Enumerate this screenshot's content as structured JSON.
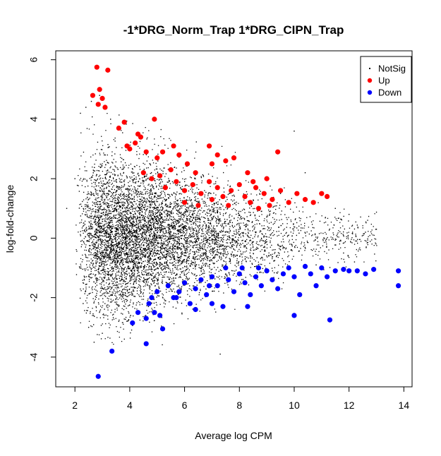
{
  "chart_data": {
    "type": "scatter",
    "title": "-1*DRG_Norm_Trap 1*DRG_CIPN_Trap",
    "xlabel": "Average log CPM",
    "ylabel": "log-fold-change",
    "xlim": [
      1.3,
      14.3
    ],
    "ylim": [
      -5,
      6.3
    ],
    "x_ticks": [
      2,
      4,
      6,
      8,
      10,
      12,
      14
    ],
    "y_ticks": [
      -4,
      -2,
      0,
      2,
      4,
      6
    ],
    "legend_position": "top-right",
    "grid": false,
    "series": [
      {
        "name": "NotSig",
        "color": "#000000",
        "marker": "small-dot",
        "note_values": "dense cloud of several thousand genes; representative sample listed",
        "points": [
          [
            1.7,
            1.0
          ],
          [
            2.0,
            2.0
          ],
          [
            2.2,
            4.2
          ],
          [
            2.4,
            4.4
          ],
          [
            2.6,
            4.6
          ],
          [
            2.9,
            4.8
          ],
          [
            3.3,
            4.0
          ],
          [
            2.3,
            -2.2
          ],
          [
            2.5,
            -3.0
          ],
          [
            2.7,
            -3.5
          ],
          [
            3.0,
            -3.2
          ],
          [
            3.6,
            -2.8
          ],
          [
            7.3,
            -3.9
          ],
          [
            10.0,
            3.6
          ],
          [
            10.4,
            2.2
          ],
          [
            11.5,
            1.0
          ],
          [
            12.0,
            0.8
          ],
          [
            12.6,
            0.2
          ],
          [
            13.0,
            0.3
          ],
          [
            11.8,
            -0.5
          ],
          [
            12.2,
            -0.8
          ],
          [
            10.8,
            -0.9
          ],
          [
            9.5,
            1.5
          ],
          [
            8.8,
            0.9
          ]
        ]
      },
      {
        "name": "Up",
        "color": "#ff0000",
        "marker": "filled-circle",
        "points": [
          [
            2.8,
            5.75
          ],
          [
            3.2,
            5.65
          ],
          [
            2.65,
            4.8
          ],
          [
            2.9,
            5.0
          ],
          [
            3.0,
            4.7
          ],
          [
            2.85,
            4.5
          ],
          [
            3.1,
            4.4
          ],
          [
            3.8,
            3.9
          ],
          [
            3.6,
            3.7
          ],
          [
            4.3,
            3.5
          ],
          [
            4.4,
            3.4
          ],
          [
            4.9,
            4.0
          ],
          [
            3.9,
            3.1
          ],
          [
            4.0,
            3.0
          ],
          [
            4.2,
            3.2
          ],
          [
            4.6,
            2.9
          ],
          [
            5.0,
            2.7
          ],
          [
            5.2,
            2.9
          ],
          [
            5.6,
            3.1
          ],
          [
            5.8,
            2.8
          ],
          [
            6.1,
            2.5
          ],
          [
            6.9,
            3.1
          ],
          [
            7.2,
            2.8
          ],
          [
            7.5,
            2.6
          ],
          [
            7.0,
            2.5
          ],
          [
            7.8,
            2.7
          ],
          [
            8.3,
            2.2
          ],
          [
            9.4,
            2.9
          ],
          [
            4.5,
            2.2
          ],
          [
            4.8,
            2.0
          ],
          [
            5.3,
            1.7
          ],
          [
            5.7,
            1.9
          ],
          [
            6.0,
            1.6
          ],
          [
            6.3,
            1.8
          ],
          [
            6.6,
            1.5
          ],
          [
            6.9,
            1.9
          ],
          [
            7.2,
            1.7
          ],
          [
            7.4,
            1.4
          ],
          [
            7.7,
            1.6
          ],
          [
            8.0,
            1.8
          ],
          [
            8.2,
            1.4
          ],
          [
            8.6,
            1.7
          ],
          [
            8.9,
            1.5
          ],
          [
            9.2,
            1.3
          ],
          [
            9.5,
            1.6
          ],
          [
            9.8,
            1.2
          ],
          [
            10.1,
            1.5
          ],
          [
            10.4,
            1.3
          ],
          [
            10.7,
            1.2
          ],
          [
            11.0,
            1.5
          ],
          [
            11.2,
            1.4
          ],
          [
            6.0,
            1.2
          ],
          [
            6.5,
            1.1
          ],
          [
            7.0,
            1.3
          ],
          [
            7.6,
            1.1
          ],
          [
            8.4,
            1.2
          ],
          [
            8.7,
            1.0
          ],
          [
            9.1,
            1.1
          ],
          [
            9.0,
            2.0
          ],
          [
            8.5,
            1.9
          ],
          [
            6.4,
            2.2
          ],
          [
            5.5,
            2.3
          ],
          [
            5.1,
            2.1
          ]
        ]
      },
      {
        "name": "Down",
        "color": "#0000ff",
        "marker": "filled-circle",
        "points": [
          [
            2.85,
            -4.65
          ],
          [
            3.35,
            -3.8
          ],
          [
            4.6,
            -3.55
          ],
          [
            5.2,
            -3.05
          ],
          [
            4.1,
            -2.85
          ],
          [
            4.6,
            -2.7
          ],
          [
            4.3,
            -2.5
          ],
          [
            4.9,
            -2.5
          ],
          [
            5.1,
            -2.6
          ],
          [
            4.7,
            -2.2
          ],
          [
            4.8,
            -2.0
          ],
          [
            5.0,
            -1.8
          ],
          [
            5.4,
            -1.6
          ],
          [
            5.6,
            -2.0
          ],
          [
            5.8,
            -1.8
          ],
          [
            6.0,
            -1.5
          ],
          [
            6.2,
            -2.2
          ],
          [
            6.4,
            -1.7
          ],
          [
            6.6,
            -1.4
          ],
          [
            6.8,
            -1.9
          ],
          [
            7.0,
            -1.3
          ],
          [
            7.2,
            -1.6
          ],
          [
            7.4,
            -2.3
          ],
          [
            7.6,
            -1.4
          ],
          [
            7.8,
            -1.8
          ],
          [
            8.0,
            -1.2
          ],
          [
            8.2,
            -1.5
          ],
          [
            8.4,
            -1.9
          ],
          [
            8.6,
            -1.3
          ],
          [
            8.8,
            -1.6
          ],
          [
            9.0,
            -1.1
          ],
          [
            9.2,
            -1.4
          ],
          [
            9.4,
            -1.7
          ],
          [
            9.6,
            -1.2
          ],
          [
            9.8,
            -1.0
          ],
          [
            10.0,
            -1.3
          ],
          [
            10.2,
            -1.9
          ],
          [
            10.4,
            -0.95
          ],
          [
            10.6,
            -1.2
          ],
          [
            10.8,
            -1.6
          ],
          [
            11.0,
            -1.0
          ],
          [
            11.2,
            -1.3
          ],
          [
            11.5,
            -1.1
          ],
          [
            11.8,
            -1.05
          ],
          [
            12.0,
            -1.1
          ],
          [
            12.3,
            -1.1
          ],
          [
            12.6,
            -1.2
          ],
          [
            12.9,
            -1.05
          ],
          [
            13.8,
            -1.1
          ],
          [
            13.8,
            -1.6
          ],
          [
            10.0,
            -2.6
          ],
          [
            11.3,
            -2.75
          ],
          [
            8.3,
            -2.3
          ],
          [
            7.0,
            -2.2
          ],
          [
            6.4,
            -2.4
          ],
          [
            5.7,
            -2.0
          ],
          [
            6.9,
            -1.6
          ],
          [
            7.5,
            -1.0
          ],
          [
            8.1,
            -1.0
          ],
          [
            8.7,
            -1.0
          ]
        ]
      }
    ]
  }
}
